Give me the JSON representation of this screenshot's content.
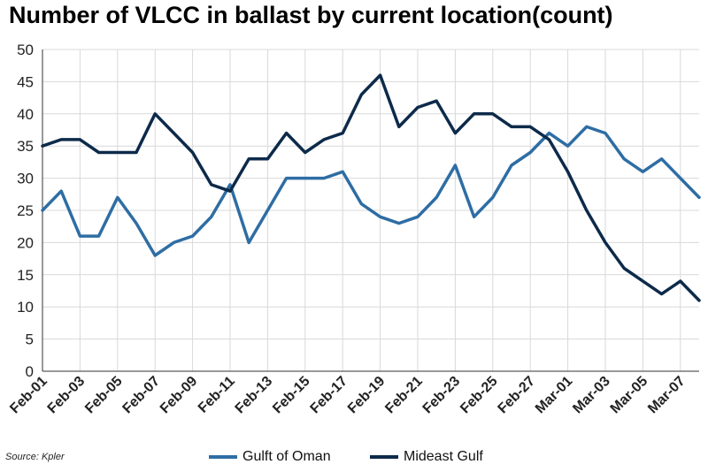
{
  "chart_data": {
    "type": "line",
    "title": "Number of VLCC in ballast by current location(count)",
    "source": "Source: Kpler",
    "ylim": [
      0,
      50
    ],
    "yticks": [
      0,
      5,
      10,
      15,
      20,
      25,
      30,
      35,
      40,
      45,
      50
    ],
    "grid": true,
    "legend_position": "bottom",
    "x": [
      "Feb-01",
      "Feb-02",
      "Feb-03",
      "Feb-04",
      "Feb-05",
      "Feb-06",
      "Feb-07",
      "Feb-08",
      "Feb-09",
      "Feb-10",
      "Feb-11",
      "Feb-12",
      "Feb-13",
      "Feb-14",
      "Feb-15",
      "Feb-16",
      "Feb-17",
      "Feb-18",
      "Feb-19",
      "Feb-20",
      "Feb-21",
      "Feb-22",
      "Feb-23",
      "Feb-24",
      "Feb-25",
      "Feb-26",
      "Feb-27",
      "Feb-28",
      "Mar-01",
      "Mar-02",
      "Mar-03",
      "Mar-04",
      "Mar-05",
      "Mar-06",
      "Mar-07",
      "Mar-08"
    ],
    "xtick_labels": [
      "Feb-01",
      "Feb-03",
      "Feb-05",
      "Feb-07",
      "Feb-09",
      "Feb-11",
      "Feb-13",
      "Feb-15",
      "Feb-17",
      "Feb-19",
      "Feb-21",
      "Feb-23",
      "Feb-25",
      "Feb-27",
      "Mar-01",
      "Mar-03",
      "Mar-05",
      "Mar-07"
    ],
    "series": [
      {
        "name": "Gulft of Oman",
        "color": "#2e6da4",
        "values": [
          25,
          28,
          21,
          21,
          27,
          23,
          18,
          20,
          21,
          24,
          29,
          20,
          25,
          30,
          30,
          30,
          31,
          26,
          24,
          23,
          24,
          27,
          32,
          24,
          27,
          32,
          34,
          37,
          35,
          38,
          37,
          33,
          31,
          33,
          30,
          27
        ]
      },
      {
        "name": "Mideast Gulf",
        "color": "#0d2a4a",
        "values": [
          35,
          36,
          36,
          34,
          34,
          34,
          40,
          37,
          34,
          29,
          28,
          33,
          33,
          37,
          34,
          36,
          37,
          43,
          46,
          38,
          41,
          42,
          37,
          40,
          40,
          38,
          38,
          36,
          31,
          25,
          20,
          16,
          14,
          12,
          14,
          11
        ]
      }
    ]
  }
}
